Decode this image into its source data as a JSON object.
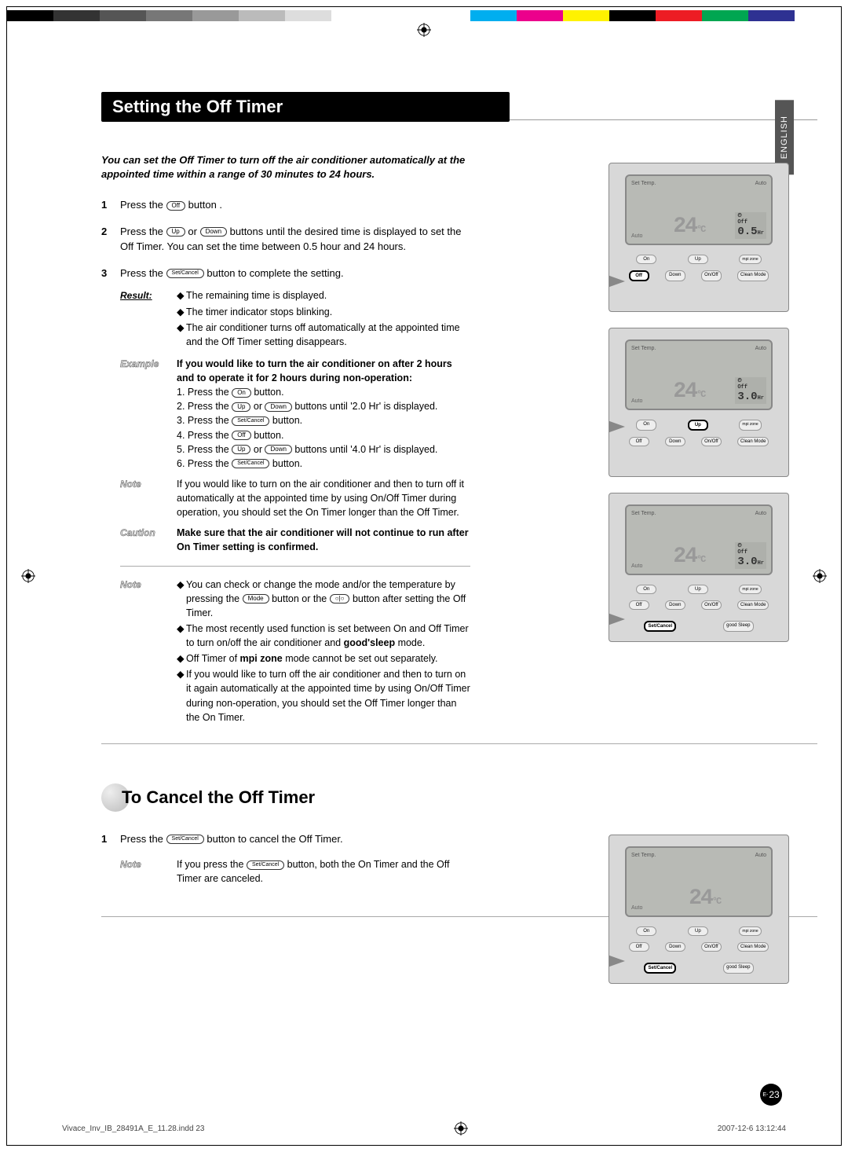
{
  "colorBar": [
    "#000000",
    "#333333",
    "#555555",
    "#777777",
    "#999999",
    "#bbbbbb",
    "#dddddd",
    "#ffffff",
    "#ffffff",
    "#ffffff",
    "#00aeef",
    "#ec008c",
    "#fff200",
    "#000000",
    "#ed1c24",
    "#00a651",
    "#2e3192",
    "#ffffff"
  ],
  "title": "Setting the Off Timer",
  "langTab": "ENGLISH",
  "intro": "You can set the Off Timer to turn off the air conditioner automatically at the appointed time within a range of 30 minutes to 24 hours.",
  "step1": {
    "num": "1",
    "pre": "Press the ",
    "btn": "Off",
    "post": " button ."
  },
  "step2": {
    "num": "2",
    "pre": "Press the ",
    "btn1": "Up",
    "mid": " or ",
    "btn2": "Down",
    "post": " buttons until the desired time is displayed to set the Off Timer. You can set the time between 0.5 hour and 24 hours."
  },
  "step3": {
    "num": "3",
    "pre": "Press the ",
    "btn": "Set/Cancel",
    "post": " button to complete the setting."
  },
  "result": {
    "label": "Result:",
    "lines": [
      "The remaining time is displayed.",
      "The timer indicator stops blinking.",
      "The air conditioner turns off automatically at the appointed time and the Off Timer setting disappears."
    ]
  },
  "example": {
    "label": "Example",
    "head": "If you would like to turn the air conditioner on after 2 hours and to operate it for 2 hours during non-operation:",
    "l1a": "1. Press the ",
    "l1btn": "On",
    "l1b": " button.",
    "l2a": "2. Press the ",
    "l2btn1": "Up",
    "l2mid": " or ",
    "l2btn2": "Down",
    "l2b": " buttons until '2.0 Hr' is displayed.",
    "l3a": "3. Press the ",
    "l3btn": "Set/Cancel",
    "l3b": " button.",
    "l4a": "4. Press the ",
    "l4btn": "Off",
    "l4b": " button.",
    "l5a": "5. Press the ",
    "l5btn1": "Up",
    "l5mid": " or ",
    "l5btn2": "Down",
    "l5b": " buttons until '4.0 Hr' is displayed.",
    "l6a": "6. Press the ",
    "l6btn": "Set/Cancel",
    "l6b": " button."
  },
  "note1": {
    "label": "Note",
    "text": "If you would like to turn on the air conditioner and then to turn off it automatically at the appointed time by using On/Off Timer during operation, you should set the On Timer longer than the Off Timer."
  },
  "caution": {
    "label": "Caution",
    "text": "Make sure that the air conditioner will not continue to run after On Timer setting is confirmed."
  },
  "note2": {
    "label": "Note",
    "l1a": "You can check or change the mode and/or the temperature by pressing the ",
    "l1btn1": "Mode",
    "l1mid": " button or the ",
    "l1btn2": "○|○",
    "l1b": " button after setting the Off Timer.",
    "l2a": "The most recently used function is set between On and Off Timer to turn on/off the air conditioner and ",
    "l2b1": "good'sleep",
    "l2b": " mode.",
    "l3a": "Off Timer of ",
    "l3b1": "mpi zone",
    "l3b": " mode cannot be set out separately.",
    "l4": "If you would like to turn off the air conditioner and then to turn on it again automatically at the appointed time by using On/Off Timer during non-operation, you should set the Off Timer longer than the On Timer."
  },
  "cancel": {
    "title": "To Cancel the Off Timer",
    "s1num": "1",
    "s1a": "Press the ",
    "s1btn": "Set/Cancel",
    "s1b": " button to cancel the Off Timer.",
    "noteLabel": "Note",
    "noteA": "If you press the ",
    "noteBtn": "Set/Cancel",
    "noteB": " button, both the On Timer and the Off Timer are canceled."
  },
  "remotes": [
    {
      "temp": "24",
      "timer": "0.5",
      "timerLabel": "Off",
      "hlOff": true
    },
    {
      "temp": "24",
      "timer": "3.0",
      "timerLabel": "Off",
      "hlUp": true
    },
    {
      "temp": "24",
      "timer": "3.0",
      "timerLabel": "Off",
      "hlSet": true
    }
  ],
  "remote4": {
    "temp": "24",
    "hlSet": true
  },
  "lcdLabels": {
    "setTemp": "Set Temp.",
    "auto": "Auto",
    "autoSide": "Auto",
    "unit": "°C",
    "hr": "Hr"
  },
  "btnLabels": {
    "on": "On",
    "off": "Off",
    "up": "Up",
    "down": "Down",
    "onoff": "On/Off",
    "clean": "Clean Mode",
    "setcancel": "Set/Cancel",
    "sleep": "good Sleep",
    "mpi": "mpi zone"
  },
  "pageNum": {
    "prefix": "E-",
    "num": "23"
  },
  "footer": {
    "file": "Vivace_Inv_IB_28491A_E_11.28.indd   23",
    "date": "2007-12-6   13:12:44"
  }
}
